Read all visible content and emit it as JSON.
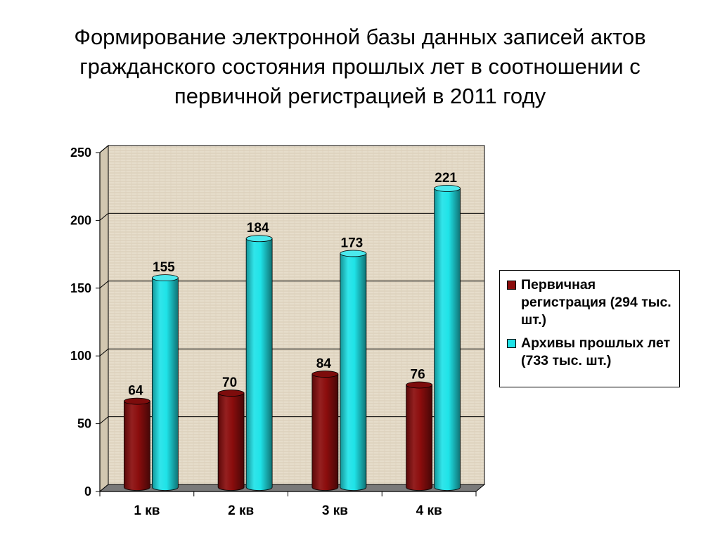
{
  "title_lines": [
    "Формирование электронной базы данных записей актов",
    "гражданского состояния прошлых лет в соотношении с",
    "первичной регистрацией в 2011 году"
  ],
  "colors": {
    "series_1": "#8b0d0d",
    "series_2": "#1fe3e8",
    "wall": "#e6ddcb",
    "floor": "#7a7a7a"
  },
  "chart_data": {
    "type": "bar",
    "categories": [
      "1 кв",
      "2 кв",
      "3 кв",
      "4 кв"
    ],
    "series": [
      {
        "name": "Первичная регистрация (294 тыс. шт.)",
        "values": [
          64,
          70,
          84,
          76
        ]
      },
      {
        "name": "Архивы прошлых лет (733 тыс. шт.)",
        "values": [
          155,
          184,
          173,
          221
        ]
      }
    ],
    "y_ticks": [
      0,
      50,
      100,
      150,
      200,
      250
    ],
    "ylim": [
      0,
      250
    ],
    "grid": true,
    "legend_position": "right",
    "style": "3d-cylinder"
  }
}
